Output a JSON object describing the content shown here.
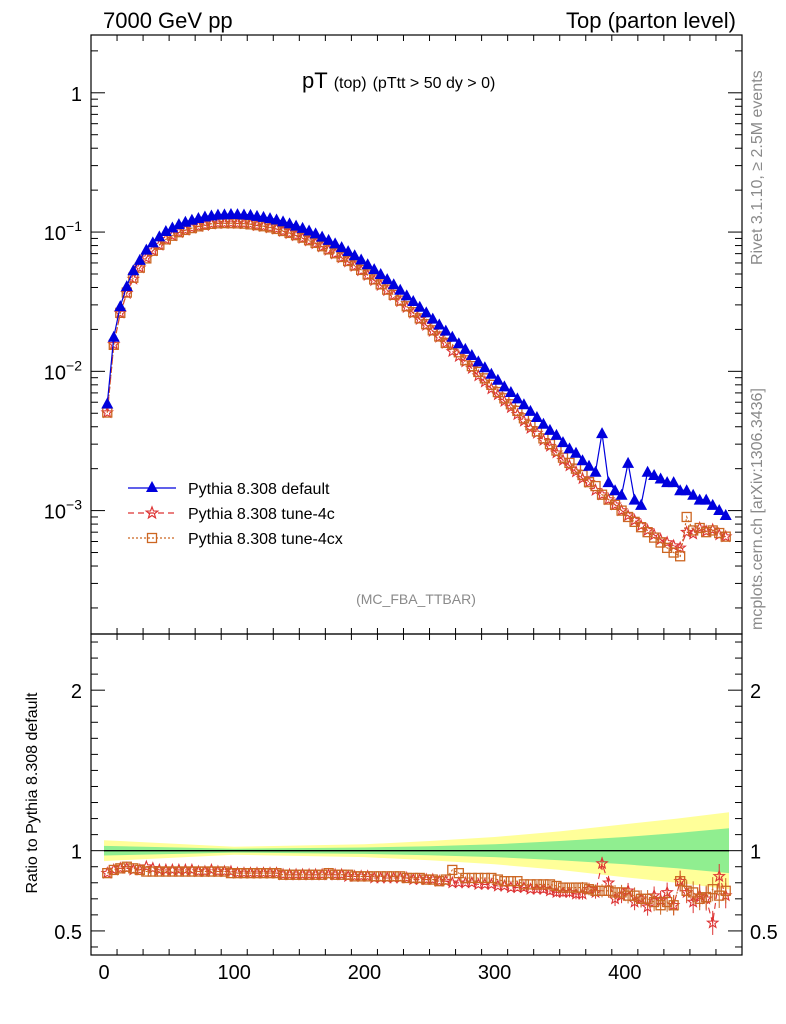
{
  "header": {
    "left": "7000 GeV pp",
    "right": "Top (parton level)"
  },
  "plot_title": {
    "main": "pT",
    "sub1": "(top)",
    "sub2": "(pTtt > 50 dy > 0)"
  },
  "watermark": "(MC_FBA_TTBAR)",
  "side_labels": {
    "rivet": "Rivet 3.1.10, ≥ 2.5M events",
    "mcplots": "mcplots.cern.ch [arXiv:1306.3436]"
  },
  "ratio_ylabel": "Ratio to Pythia 8.308 default",
  "legend": [
    {
      "label": "Pythia 8.308 default",
      "color": "#0000dd",
      "marker": "triangle"
    },
    {
      "label": "Pythia 8.308 tune-4c",
      "color": "#dd3333",
      "marker": "star"
    },
    {
      "label": "Pythia 8.308 tune-4cx",
      "color": "#cc6622",
      "marker": "square"
    }
  ],
  "colors": {
    "default": "#0000dd",
    "tune4c": "#dd3333",
    "tune4cx": "#cc6622",
    "band_inner": "#90ee90",
    "band_outer": "#ffff99"
  },
  "chart_data": [
    {
      "type": "line",
      "yscale": "log",
      "xlim": [
        -10,
        490
      ],
      "ylim": [
        0.00013,
        2.6
      ],
      "yticklabels": [
        "1",
        "10^-1",
        "10^-2",
        "10^-3"
      ],
      "x": [
        2.5,
        7.5,
        12.5,
        17.5,
        22.5,
        27.5,
        32.5,
        37.5,
        42.5,
        47.5,
        52.5,
        57.5,
        62.5,
        67.5,
        72.5,
        77.5,
        82.5,
        87.5,
        92.5,
        97.5,
        102.5,
        107.5,
        112.5,
        117.5,
        122.5,
        127.5,
        132.5,
        137.5,
        142.5,
        147.5,
        152.5,
        157.5,
        162.5,
        167.5,
        172.5,
        177.5,
        182.5,
        187.5,
        192.5,
        197.5,
        202.5,
        207.5,
        212.5,
        217.5,
        222.5,
        227.5,
        232.5,
        237.5,
        242.5,
        247.5,
        252.5,
        257.5,
        262.5,
        267.5,
        272.5,
        277.5,
        282.5,
        287.5,
        292.5,
        297.5,
        302.5,
        307.5,
        312.5,
        317.5,
        322.5,
        327.5,
        332.5,
        337.5,
        342.5,
        347.5,
        352.5,
        357.5,
        362.5,
        367.5,
        372.5,
        377.5,
        382.5,
        387.5,
        392.5,
        397.5,
        402.5,
        407.5,
        412.5,
        417.5,
        422.5,
        427.5,
        432.5,
        437.5,
        442.5,
        447.5,
        452.5,
        457.5,
        462.5,
        467.5,
        472.5,
        477.5
      ],
      "series": [
        {
          "name": "Pythia 8.308 default",
          "values": [
            0.00588,
            0.0177,
            0.0294,
            0.0409,
            0.0532,
            0.0632,
            0.0748,
            0.0843,
            0.0932,
            0.1018,
            0.1079,
            0.1141,
            0.1185,
            0.1225,
            0.1263,
            0.1293,
            0.1316,
            0.1335,
            0.1339,
            0.1347,
            0.1344,
            0.1337,
            0.1328,
            0.1306,
            0.1285,
            0.1258,
            0.1231,
            0.1194,
            0.1155,
            0.1113,
            0.1071,
            0.1026,
            0.0979,
            0.0928,
            0.0878,
            0.0829,
            0.0779,
            0.0729,
            0.0681,
            0.0635,
            0.0587,
            0.0542,
            0.05,
            0.0459,
            0.0422,
            0.0385,
            0.0351,
            0.032,
            0.0291,
            0.0265,
            0.0239,
            0.0217,
            0.0196,
            0.0177,
            0.0159,
            0.0145,
            0.0131,
            0.0118,
            0.0107,
            0.0096,
            0.0087,
            0.0078,
            0.0071,
            0.0064,
            0.0058,
            0.0052,
            0.0047,
            0.0042,
            0.0038,
            0.0035,
            0.0031,
            0.0028,
            0.0026,
            0.0023,
            0.0021,
            0.0019,
            0.0036,
            0.0016,
            0.0014,
            0.0013,
            0.0022,
            0.0012,
            0.0011,
            0.0019,
            0.0018,
            0.0017,
            0.0016,
            0.0016,
            0.0014,
            0.0014,
            0.0013,
            0.0012,
            0.0012,
            0.0011,
            0.00101,
            0.00093
          ]
        },
        {
          "name": "Pythia 8.308 tune-4c",
          "values": [
            0.00505,
            0.0156,
            0.0262,
            0.0363,
            0.046,
            0.0554,
            0.0652,
            0.0735,
            0.0806,
            0.0885,
            0.0943,
            0.0993,
            0.1032,
            0.107,
            0.1097,
            0.1117,
            0.1143,
            0.1154,
            0.1155,
            0.1159,
            0.1153,
            0.1149,
            0.1141,
            0.1114,
            0.1099,
            0.1074,
            0.1052,
            0.1012,
            0.0976,
            0.0943,
            0.0902,
            0.0865,
            0.0826,
            0.0784,
            0.0741,
            0.0698,
            0.0654,
            0.0611,
            0.0568,
            0.0528,
            0.0489,
            0.0449,
            0.0414,
            0.038,
            0.0351,
            0.0317,
            0.0288,
            0.0262,
            0.0236,
            0.0214,
            0.0194,
            0.0176,
            0.0159,
            0.0139,
            0.0128,
            0.0117,
            0.0105,
            0.0093,
            0.0084,
            0.0075,
            0.0068,
            0.0061,
            0.0055,
            0.0049,
            0.0044,
            0.0039,
            0.0036,
            0.0032,
            0.0029,
            0.0026,
            0.0023,
            0.0021,
            0.0019,
            0.0017,
            0.0016,
            0.0014,
            0.0013,
            0.0012,
            0.0011,
            0.001,
            0.00092,
            0.00085,
            0.00078,
            0.00072,
            0.00067,
            0.00062,
            0.00059,
            0.00056,
            0.00054,
            0.0007,
            0.00068,
            0.00075,
            0.00071,
            0.00073,
            0.00067,
            0.00065
          ]
        },
        {
          "name": "Pythia 8.308 tune-4cx",
          "values": [
            0.00506,
            0.0155,
            0.0263,
            0.0368,
            0.047,
            0.0555,
            0.0647,
            0.0734,
            0.0811,
            0.0886,
            0.0941,
            0.0998,
            0.1036,
            0.1068,
            0.1099,
            0.1128,
            0.1146,
            0.1156,
            0.1159,
            0.1158,
            0.1155,
            0.115,
            0.1136,
            0.1121,
            0.1101,
            0.1081,
            0.1053,
            0.1018,
            0.0986,
            0.095,
            0.0912,
            0.0874,
            0.0836,
            0.0791,
            0.0751,
            0.0704,
            0.0662,
            0.062,
            0.0575,
            0.0535,
            0.0496,
            0.0457,
            0.0421,
            0.0386,
            0.0354,
            0.0322,
            0.0293,
            0.0266,
            0.024,
            0.0218,
            0.0197,
            0.0178,
            0.016,
            0.0156,
            0.0137,
            0.012,
            0.0109,
            0.0099,
            0.0089,
            0.008,
            0.0071,
            0.0064,
            0.0058,
            0.0052,
            0.0046,
            0.0041,
            0.0037,
            0.0033,
            0.003,
            0.0027,
            0.0024,
            0.0022,
            0.002,
            0.0018,
            0.0016,
            0.0015,
            0.0013,
            0.0012,
            0.0011,
            0.001,
            0.0009,
            0.00083,
            0.00076,
            0.0007,
            0.00064,
            0.00059,
            0.00054,
            0.0005,
            0.00047,
            0.0009,
            0.00072,
            0.00075,
            0.0007,
            0.00072,
            0.00069,
            0.00065
          ]
        }
      ]
    },
    {
      "type": "line",
      "ylabel": "Ratio to Pythia 8.308 default",
      "xlim": [
        -10,
        490
      ],
      "ylim": [
        0.35,
        2.35
      ],
      "xticks": [
        0,
        100,
        200,
        300,
        400
      ],
      "yticks": [
        0.5,
        1,
        2
      ],
      "x": [
        2.5,
        7.5,
        12.5,
        17.5,
        22.5,
        27.5,
        32.5,
        37.5,
        42.5,
        47.5,
        52.5,
        57.5,
        62.5,
        67.5,
        72.5,
        77.5,
        82.5,
        87.5,
        92.5,
        97.5,
        102.5,
        107.5,
        112.5,
        117.5,
        122.5,
        127.5,
        132.5,
        137.5,
        142.5,
        147.5,
        152.5,
        157.5,
        162.5,
        167.5,
        172.5,
        177.5,
        182.5,
        187.5,
        192.5,
        197.5,
        202.5,
        207.5,
        212.5,
        217.5,
        222.5,
        227.5,
        232.5,
        237.5,
        242.5,
        247.5,
        252.5,
        257.5,
        262.5,
        267.5,
        272.5,
        277.5,
        282.5,
        287.5,
        292.5,
        297.5,
        302.5,
        307.5,
        312.5,
        317.5,
        322.5,
        327.5,
        332.5,
        337.5,
        342.5,
        347.5,
        352.5,
        357.5,
        362.5,
        367.5,
        372.5,
        377.5,
        382.5,
        387.5,
        392.5,
        397.5,
        402.5,
        407.5,
        412.5,
        417.5,
        422.5,
        427.5,
        432.5,
        437.5,
        442.5,
        447.5,
        452.5,
        457.5,
        462.5,
        467.5,
        472.5,
        477.5
      ],
      "band": {
        "x": [
          0,
          100,
          200,
          250,
          300,
          350,
          400,
          440,
          480
        ],
        "inner": [
          0.03,
          0.012,
          0.02,
          0.028,
          0.04,
          0.06,
          0.085,
          0.11,
          0.14
        ],
        "outer": [
          0.065,
          0.025,
          0.04,
          0.06,
          0.085,
          0.12,
          0.165,
          0.2,
          0.24
        ]
      },
      "series": [
        {
          "name": "Pythia 8.308 tune-4c",
          "values": [
            0.86,
            0.88,
            0.89,
            0.89,
            0.88,
            0.88,
            0.9,
            0.89,
            0.88,
            0.88,
            0.88,
            0.88,
            0.88,
            0.88,
            0.87,
            0.87,
            0.88,
            0.87,
            0.87,
            0.87,
            0.86,
            0.86,
            0.86,
            0.86,
            0.86,
            0.86,
            0.86,
            0.85,
            0.85,
            0.85,
            0.85,
            0.85,
            0.85,
            0.85,
            0.85,
            0.85,
            0.85,
            0.84,
            0.84,
            0.84,
            0.84,
            0.83,
            0.83,
            0.83,
            0.83,
            0.83,
            0.83,
            0.82,
            0.82,
            0.82,
            0.82,
            0.81,
            0.81,
            0.8,
            0.8,
            0.8,
            0.8,
            0.79,
            0.79,
            0.79,
            0.78,
            0.78,
            0.77,
            0.77,
            0.77,
            0.76,
            0.76,
            0.76,
            0.75,
            0.74,
            0.74,
            0.74,
            0.73,
            0.73,
            0.76,
            0.74,
            0.92,
            0.8,
            0.7,
            0.72,
            0.75,
            0.68,
            0.7,
            0.65,
            0.72,
            0.69,
            0.74,
            0.66,
            0.81,
            0.74,
            0.68,
            0.72,
            0.7,
            0.55,
            0.84,
            0.72
          ]
        },
        {
          "name": "Pythia 8.308 tune-4cx",
          "values": [
            0.86,
            0.88,
            0.89,
            0.9,
            0.89,
            0.88,
            0.87,
            0.87,
            0.87,
            0.87,
            0.87,
            0.87,
            0.87,
            0.87,
            0.87,
            0.87,
            0.87,
            0.87,
            0.87,
            0.86,
            0.86,
            0.86,
            0.86,
            0.86,
            0.86,
            0.86,
            0.86,
            0.85,
            0.85,
            0.85,
            0.85,
            0.85,
            0.85,
            0.85,
            0.86,
            0.85,
            0.85,
            0.85,
            0.84,
            0.84,
            0.84,
            0.84,
            0.84,
            0.84,
            0.84,
            0.84,
            0.83,
            0.83,
            0.83,
            0.82,
            0.82,
            0.81,
            0.82,
            0.88,
            0.86,
            0.83,
            0.83,
            0.83,
            0.83,
            0.83,
            0.82,
            0.81,
            0.81,
            0.81,
            0.79,
            0.79,
            0.79,
            0.79,
            0.79,
            0.78,
            0.77,
            0.77,
            0.77,
            0.77,
            0.76,
            0.75,
            0.75,
            0.75,
            0.74,
            0.74,
            0.72,
            0.72,
            0.7,
            0.7,
            0.68,
            0.66,
            0.68,
            0.66,
            0.81,
            0.75,
            0.74,
            0.7,
            0.71,
            0.76,
            0.72,
            0.75
          ]
        }
      ]
    }
  ]
}
